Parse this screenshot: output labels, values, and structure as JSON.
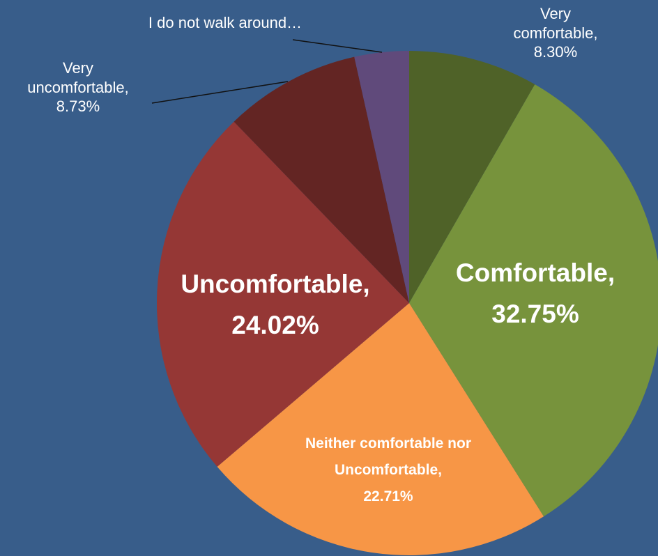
{
  "chart_data": {
    "type": "pie",
    "categories": [
      "Very comfortable",
      "Comfortable",
      "Neither comfortable nor Uncomfortable",
      "Uncomfortable",
      "Very uncomfortable",
      "I do not walk around…"
    ],
    "values": [
      8.3,
      32.75,
      22.71,
      24.02,
      8.73,
      3.49
    ],
    "value_labels": [
      "8.30%",
      "32.75%",
      "22.71%",
      "24.02%",
      "8.73%",
      null
    ],
    "colors": [
      "#4f6228",
      "#77933c",
      "#f79646",
      "#953735",
      "#632523",
      "#604a7b"
    ]
  }
}
